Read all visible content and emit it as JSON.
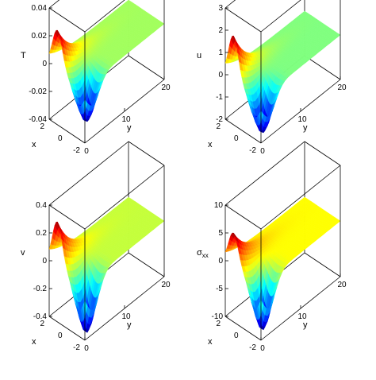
{
  "chart_data": [
    {
      "type": "surface",
      "zlabel": "T",
      "xlabel": "x",
      "ylabel": "y",
      "x_ticks": [
        "2",
        "0",
        "-2"
      ],
      "y_ticks": [
        "0",
        "10",
        "20"
      ],
      "z_ticks": [
        "0.04",
        "0.02",
        "0",
        "-0.02",
        "-0.04"
      ],
      "xlim": [
        -2,
        2
      ],
      "ylim": [
        0,
        20
      ],
      "zlim": [
        -0.04,
        0.04
      ],
      "colormap": "jet",
      "surface": {
        "peak": 0.028,
        "trough": -0.032
      }
    },
    {
      "type": "surface",
      "zlabel": "u",
      "xlabel": "x",
      "ylabel": "y",
      "x_ticks": [
        "2",
        "0",
        "-2"
      ],
      "y_ticks": [
        "0",
        "10",
        "20"
      ],
      "z_ticks": [
        "3",
        "2",
        "1",
        "0",
        "-1",
        "-2"
      ],
      "xlim": [
        -2,
        2
      ],
      "ylim": [
        0,
        20
      ],
      "zlim": [
        -2,
        3
      ],
      "colormap": "jet",
      "surface": {
        "peak": 2.0,
        "trough": -2.0
      }
    },
    {
      "type": "surface",
      "zlabel": "v",
      "xlabel": "x",
      "ylabel": "y",
      "x_ticks": [
        "2",
        "0",
        "-2"
      ],
      "y_ticks": [
        "0",
        "10",
        "20"
      ],
      "z_ticks": [
        "0.4",
        "0.2",
        "0",
        "-0.2",
        "-0.4"
      ],
      "xlim": [
        -2,
        2
      ],
      "ylim": [
        0,
        20
      ],
      "zlim": [
        -0.4,
        0.4
      ],
      "colormap": "jet",
      "surface": {
        "peak": 0.32,
        "trough": -0.42
      }
    },
    {
      "type": "surface",
      "zlabel": "σ",
      "zlabel_sub": "xx",
      "xlabel": "x",
      "ylabel": "y",
      "x_ticks": [
        "2",
        "0",
        "-2"
      ],
      "y_ticks": [
        "0",
        "10",
        "20"
      ],
      "z_ticks": [
        "10",
        "5",
        "0",
        "-5",
        "-10"
      ],
      "xlim": [
        -2,
        2
      ],
      "ylim": [
        0,
        20
      ],
      "zlim": [
        -10,
        10
      ],
      "colormap": "jet",
      "surface": {
        "peak": 6.0,
        "trough": -10.0
      }
    }
  ]
}
